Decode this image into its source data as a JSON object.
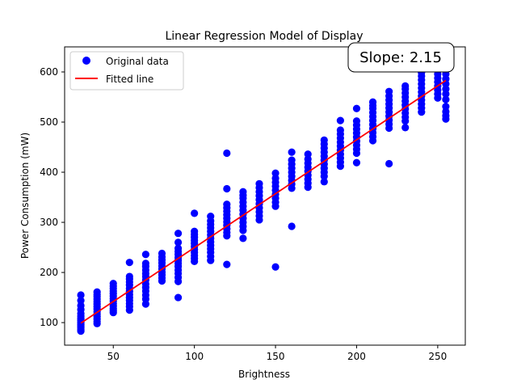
{
  "chart_data": {
    "type": "scatter",
    "title": "Linear Regression Model of Display",
    "xlabel": "Brightness",
    "ylabel": "Power Consumption (mW)",
    "xlim": [
      20,
      267
    ],
    "ylim": [
      55,
      650
    ],
    "xticks": [
      50,
      100,
      150,
      200,
      250
    ],
    "yticks": [
      100,
      200,
      300,
      400,
      500,
      600
    ],
    "legend": {
      "placement": "top-left",
      "entries": [
        {
          "label": "Original data",
          "marker": "circle",
          "color": "#0000ff"
        },
        {
          "label": "Fitted line",
          "marker": "line",
          "color": "#ff0000"
        }
      ]
    },
    "annotation": {
      "text": "Slope: 2.15",
      "placement": "top-right"
    },
    "colors": {
      "points": "#0000ff",
      "fit_line": "#ff0000"
    },
    "series": [
      {
        "name": "Original data",
        "type": "scatter",
        "points": [
          {
            "x": 30,
            "y": [
              83,
              86,
              90,
              93,
              96,
              100,
              104,
              108,
              113,
              118,
              126,
              134,
              144,
              155
            ]
          },
          {
            "x": 40,
            "y": [
              98,
              102,
              107,
              112,
              117,
              122,
              127,
              132,
              137,
              142,
              147,
              152,
              156,
              161
            ]
          },
          {
            "x": 50,
            "y": [
              120,
              124,
              128,
              133,
              138,
              143,
              148,
              153,
              158,
              163,
              168,
              173,
              178
            ]
          },
          {
            "x": 60,
            "y": [
              125,
              132,
              138,
              144,
              150,
              156,
              162,
              168,
              175,
              181,
              187,
              192,
              220
            ]
          },
          {
            "x": 70,
            "y": [
              137,
              147,
              155,
              163,
              170,
              177,
              185,
              192,
              198,
              205,
              212,
              218,
              236
            ]
          },
          {
            "x": 80,
            "y": [
              183,
              189,
              195,
              201,
              207,
              213,
              219,
              225,
              231,
              238
            ]
          },
          {
            "x": 90,
            "y": [
              150,
              182,
              190,
              198,
              205,
              212,
              218,
              224,
              230,
              236,
              242,
              248,
              260,
              278
            ]
          },
          {
            "x": 100,
            "y": [
              222,
              228,
              234,
              240,
              246,
              252,
              258,
              264,
              270,
              276,
              282,
              318
            ]
          },
          {
            "x": 110,
            "y": [
              224,
              232,
              240,
              247,
              254,
              261,
              268,
              275,
              282,
              289,
              296,
              303,
              312
            ]
          },
          {
            "x": 120,
            "y": [
              216,
              273,
              280,
              287,
              294,
              301,
              308,
              315,
              322,
              329,
              336,
              367,
              438
            ]
          },
          {
            "x": 130,
            "y": [
              268,
              284,
              292,
              300,
              308,
              316,
              324,
              332,
              340,
              348,
              354,
              361
            ]
          },
          {
            "x": 140,
            "y": [
              305,
              313,
              321,
              329,
              337,
              345,
              353,
              361,
              369,
              377
            ]
          },
          {
            "x": 150,
            "y": [
              211,
              332,
              340,
              348,
              356,
              364,
              372,
              380,
              388,
              398
            ]
          },
          {
            "x": 160,
            "y": [
              292,
              368,
              376,
              384,
              392,
              400,
              408,
              416,
              424,
              440
            ]
          },
          {
            "x": 170,
            "y": [
              370,
              378,
              386,
              394,
              402,
              410,
              418,
              426,
              436
            ]
          },
          {
            "x": 180,
            "y": [
              381,
              392,
              400,
              408,
              416,
              424,
              432,
              440,
              448,
              456,
              464
            ]
          },
          {
            "x": 190,
            "y": [
              412,
              420,
              428,
              436,
              444,
              452,
              460,
              468,
              476,
              484,
              503
            ]
          },
          {
            "x": 200,
            "y": [
              419,
              438,
              446,
              454,
              462,
              470,
              478,
              486,
              494,
              502,
              527
            ]
          },
          {
            "x": 210,
            "y": [
              463,
              471,
              479,
              487,
              495,
              503,
              511,
              519,
              527,
              533,
              540
            ]
          },
          {
            "x": 220,
            "y": [
              417,
              488,
              496,
              504,
              512,
              520,
              528,
              536,
              544,
              552,
              561
            ]
          },
          {
            "x": 230,
            "y": [
              489,
              502,
              510,
              518,
              526,
              534,
              542,
              550,
              558,
              566,
              572
            ]
          },
          {
            "x": 240,
            "y": [
              520,
              528,
              536,
              544,
              552,
              560,
              568,
              576,
              584,
              592,
              599
            ]
          },
          {
            "x": 250,
            "y": [
              548,
              556,
              564,
              572,
              580,
              588,
              596,
              604,
              612
            ]
          },
          {
            "x": 255,
            "y": [
              506,
              513,
              521,
              531,
              545,
              556,
              566,
              576,
              586,
              596,
              605
            ]
          }
        ]
      },
      {
        "name": "Fitted line",
        "type": "line",
        "x": [
          30,
          255
        ],
        "y": [
          99,
          583
        ]
      }
    ]
  }
}
